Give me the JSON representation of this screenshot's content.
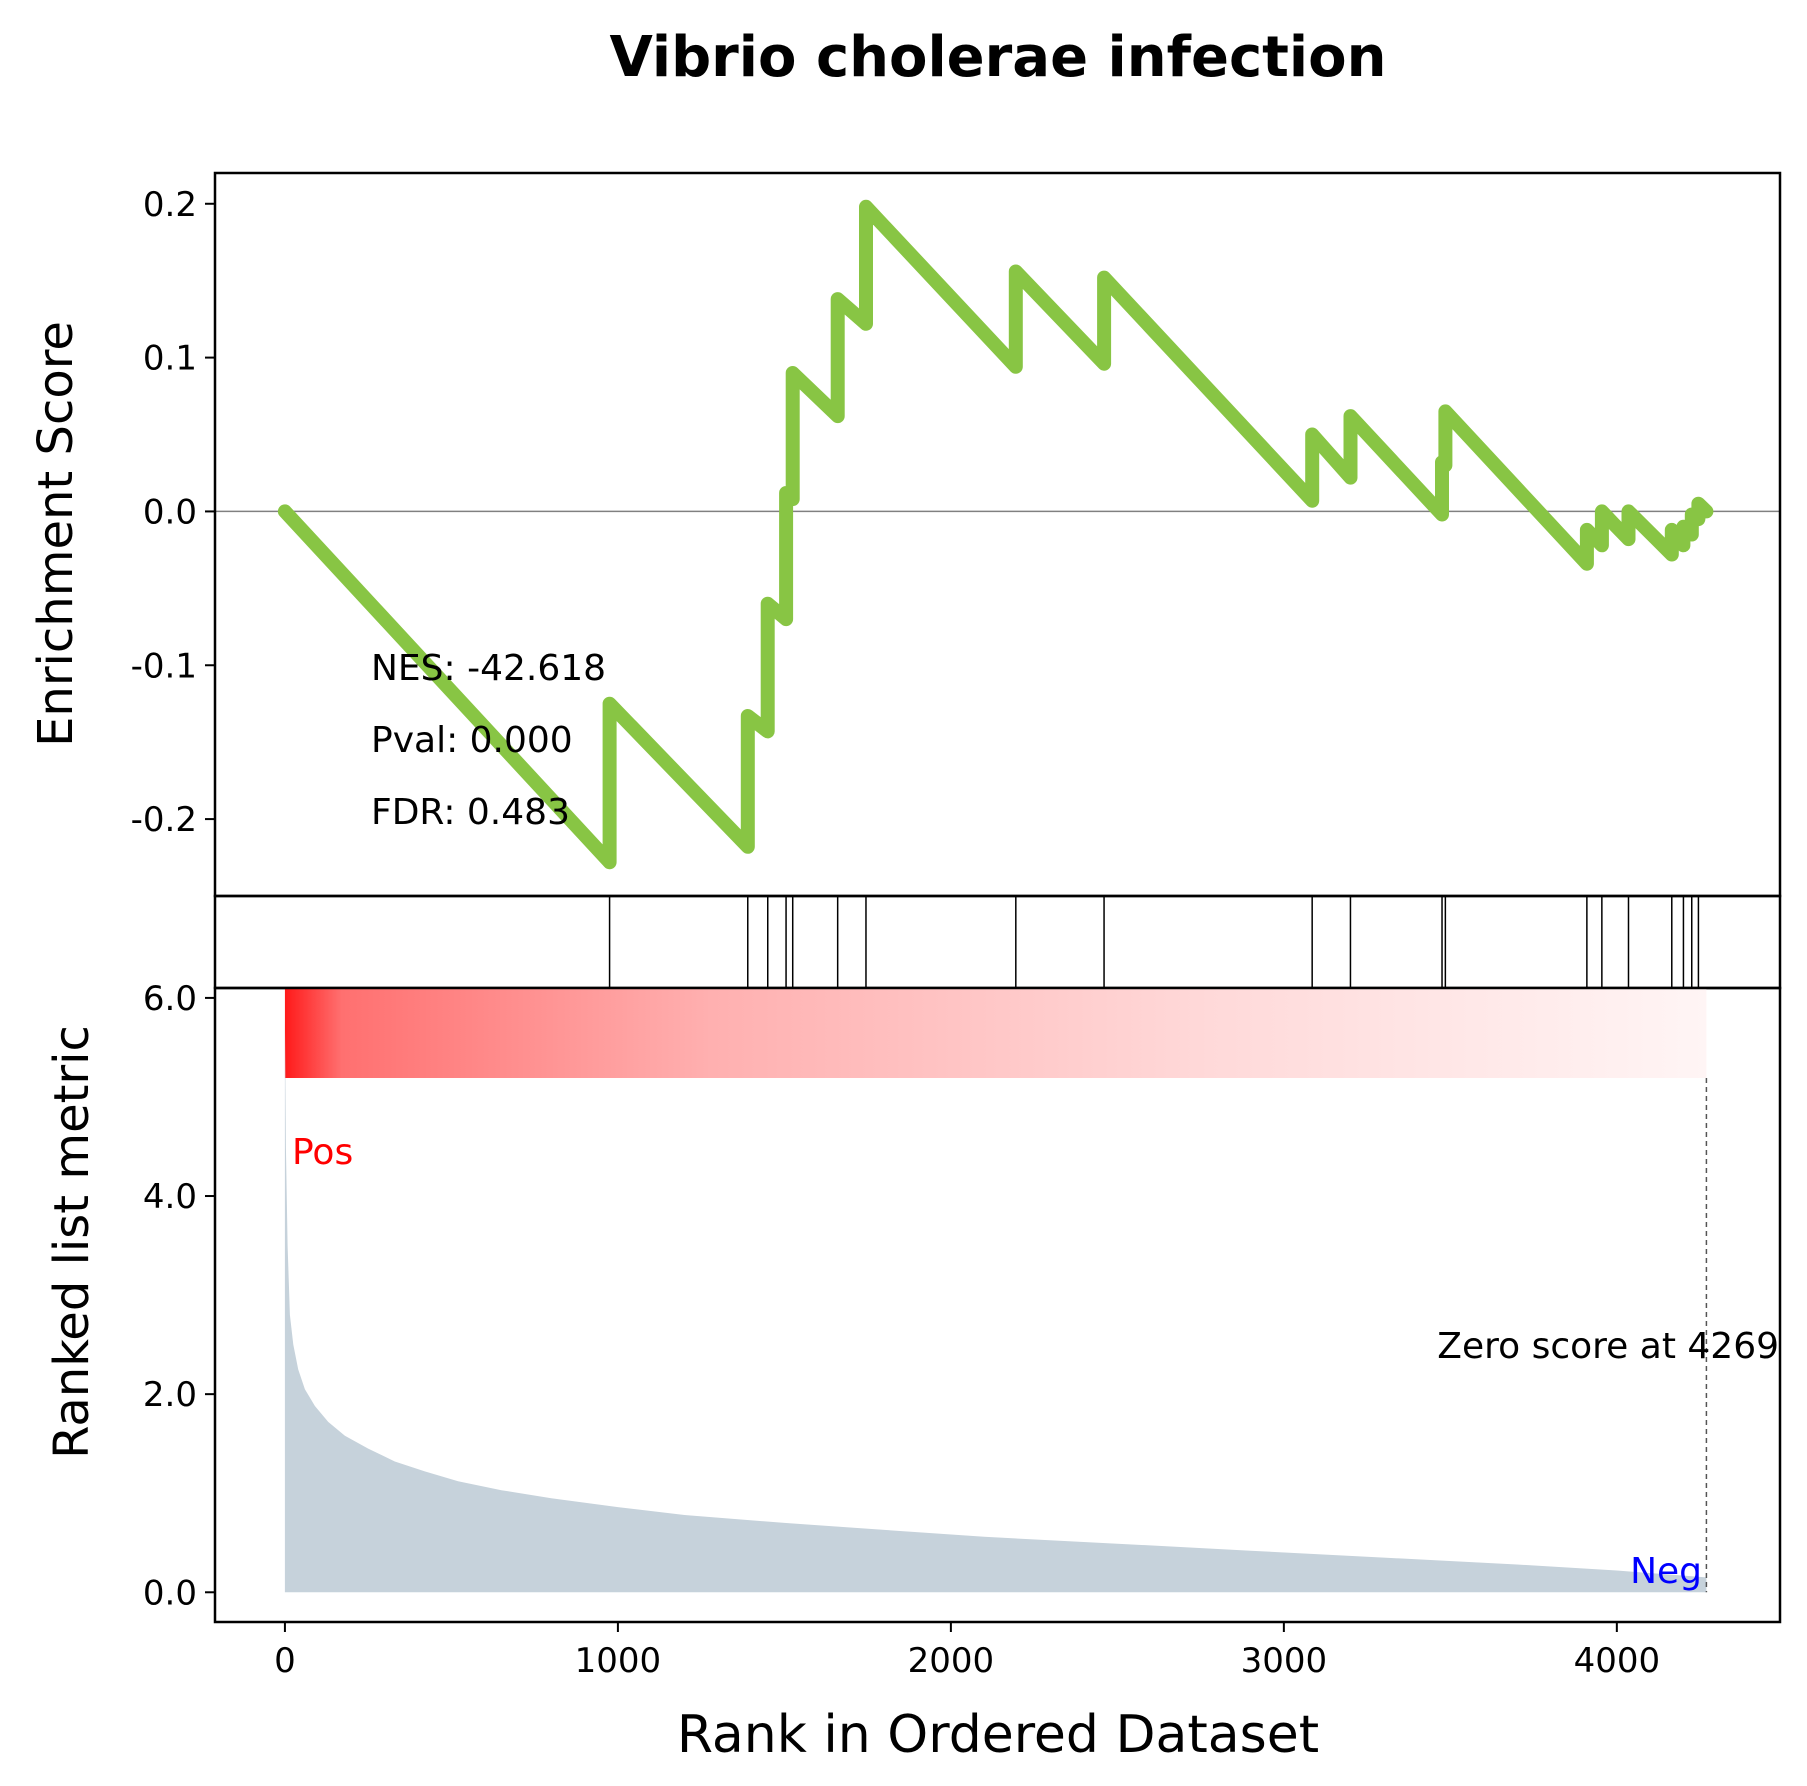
{
  "chart_data": {
    "type": "line",
    "title": "Vibrio cholerae infection",
    "xlabel": "Rank in Ordered Dataset",
    "xlim": [
      -210,
      4490
    ],
    "x_ticks": [
      0,
      1000,
      2000,
      3000,
      4000
    ],
    "x_tick_labels": [
      "0",
      "1000",
      "2000",
      "3000",
      "4000"
    ],
    "enrichment": {
      "ylabel": "Enrichment Score",
      "ylim": [
        -0.25,
        0.22
      ],
      "y_ticks": [
        -0.2,
        -0.1,
        0.0,
        0.1,
        0.2
      ],
      "y_tick_labels": [
        "-0.2",
        "-0.1",
        "0.0",
        "0.1",
        "0.2"
      ],
      "color": "#88c544",
      "zero_line": true,
      "points": [
        [
          0,
          0.0
        ],
        [
          975,
          -0.228
        ],
        [
          975,
          -0.125
        ],
        [
          1390,
          -0.218
        ],
        [
          1390,
          -0.133
        ],
        [
          1450,
          -0.143
        ],
        [
          1450,
          -0.06
        ],
        [
          1505,
          -0.07
        ],
        [
          1505,
          0.012
        ],
        [
          1525,
          0.008
        ],
        [
          1525,
          0.09
        ],
        [
          1660,
          0.062
        ],
        [
          1660,
          0.138
        ],
        [
          1745,
          0.122
        ],
        [
          1745,
          0.198
        ],
        [
          2195,
          0.094
        ],
        [
          2195,
          0.156
        ],
        [
          2460,
          0.096
        ],
        [
          2460,
          0.152
        ],
        [
          3085,
          0.007
        ],
        [
          3085,
          0.05
        ],
        [
          3200,
          0.022
        ],
        [
          3200,
          0.062
        ],
        [
          3475,
          -0.002
        ],
        [
          3475,
          0.032
        ],
        [
          3485,
          0.03
        ],
        [
          3485,
          0.065
        ],
        [
          3910,
          -0.034
        ],
        [
          3910,
          -0.012
        ],
        [
          3955,
          -0.022
        ],
        [
          3955,
          0.0
        ],
        [
          3990,
          -0.008
        ],
        [
          3990,
          -0.008
        ],
        [
          4035,
          -0.018
        ],
        [
          4035,
          0.0
        ],
        [
          4165,
          -0.028
        ],
        [
          4165,
          -0.012
        ],
        [
          4200,
          -0.022
        ],
        [
          4200,
          -0.01
        ],
        [
          4225,
          -0.015
        ],
        [
          4225,
          -0.002
        ],
        [
          4245,
          -0.005
        ],
        [
          4245,
          0.005
        ],
        [
          4269,
          0.0
        ]
      ]
    },
    "stats": [
      "NES: -42.618",
      "Pval: 0.000",
      "FDR: 0.483"
    ],
    "hits": [
      975,
      1390,
      1450,
      1505,
      1525,
      1660,
      1745,
      2195,
      2460,
      3085,
      3200,
      3475,
      3485,
      3910,
      3955,
      4035,
      4165,
      4200,
      4225,
      4245
    ],
    "ranked_metric": {
      "ylabel": "Ranked list metric",
      "ylim": [
        -0.3,
        6.1
      ],
      "y_ticks": [
        0.0,
        2.0,
        4.0,
        6.0
      ],
      "y_tick_labels": [
        "0.0",
        "2.0",
        "4.0",
        "6.0"
      ],
      "fill_color": "#c6d2db",
      "profile": [
        [
          0,
          5.8
        ],
        [
          3,
          4.5
        ],
        [
          8,
          3.5
        ],
        [
          15,
          2.8
        ],
        [
          25,
          2.5
        ],
        [
          40,
          2.25
        ],
        [
          60,
          2.05
        ],
        [
          90,
          1.88
        ],
        [
          130,
          1.72
        ],
        [
          180,
          1.58
        ],
        [
          250,
          1.45
        ],
        [
          330,
          1.32
        ],
        [
          420,
          1.22
        ],
        [
          520,
          1.12
        ],
        [
          650,
          1.03
        ],
        [
          800,
          0.95
        ],
        [
          1000,
          0.86
        ],
        [
          1200,
          0.78
        ],
        [
          1500,
          0.7
        ],
        [
          1800,
          0.63
        ],
        [
          2100,
          0.56
        ],
        [
          2500,
          0.49
        ],
        [
          2900,
          0.42
        ],
        [
          3300,
          0.35
        ],
        [
          3700,
          0.28
        ],
        [
          4000,
          0.22
        ],
        [
          4269,
          0.15
        ]
      ],
      "pos_label": "Pos",
      "neg_label": "Neg",
      "pos_color": "#ff0000",
      "neg_color": "#0000ff",
      "zero_score_rank": 4269,
      "zero_score_label": "Zero score at 4269",
      "gradient_start_color": "#ff1a1a",
      "gradient_end_color": "#fff5f5"
    }
  }
}
